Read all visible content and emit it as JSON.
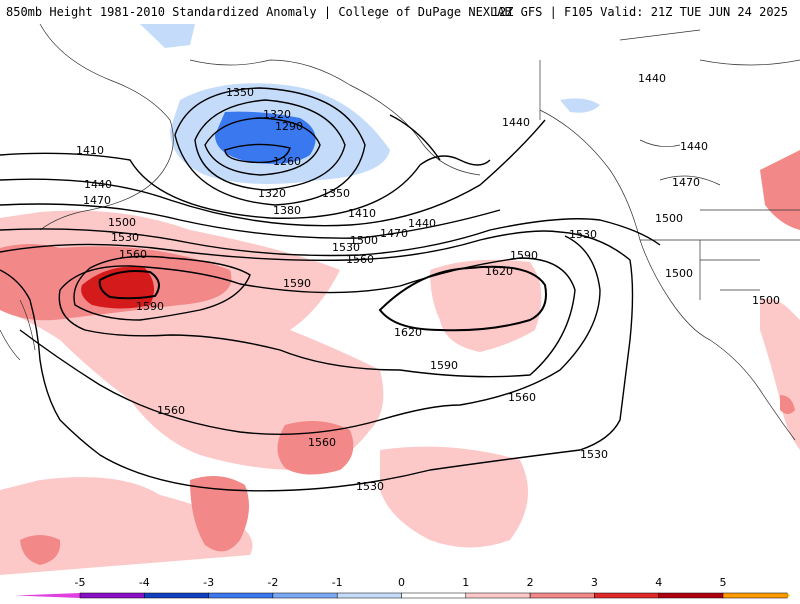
{
  "header": {
    "left_title": "850mb Height 1981-2010 Standardized Anomaly | College of DuPage NEXLAB",
    "right_title": "12Z GFS | F105 Valid: 21Z TUE JUN 24 2025"
  },
  "contour_labels": [
    "1260",
    "1290",
    "1320",
    "1350",
    "1380",
    "1410",
    "1440",
    "1470",
    "1500",
    "1530",
    "1560",
    "1590",
    "1620"
  ],
  "legend": {
    "ticks": [
      "-5",
      "-4",
      "-3",
      "-2",
      "-1",
      "0",
      "1",
      "2",
      "3",
      "4",
      "5"
    ],
    "colors": [
      "#e040e0",
      "#8a10c8",
      "#1040c0",
      "#3a78f0",
      "#7aaaf5",
      "#c4dcfa",
      "#ffffff",
      "#fcc8c8",
      "#f28888",
      "#e02828",
      "#b00010",
      "#ff9a00",
      "#ffd000"
    ]
  }
}
